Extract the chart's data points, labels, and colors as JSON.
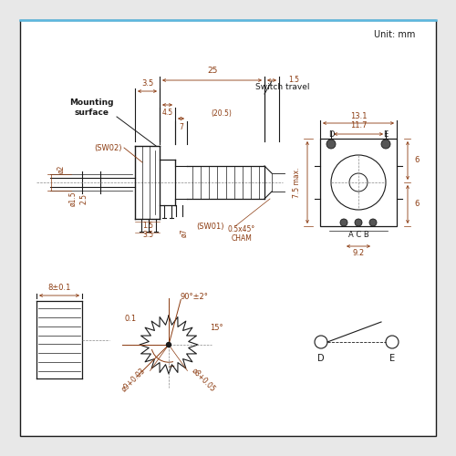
{
  "bg_color": "#e8e8e8",
  "panel_color": "#ffffff",
  "line_color": "#1a1a1a",
  "dim_color": "#8B3A0F",
  "blue_line": "#5bb8e0",
  "unit_text": "Unit: mm",
  "annotations": {
    "mounting_surface": "Mounting\nsurface",
    "sw02": "(SW02)",
    "sw01": "(SW01)",
    "switch_travel": "Switch travel",
    "cham": "0.5x45°\nCHAM",
    "dim_35": "3.5",
    "dim_25": "25",
    "dim_45": "4.5",
    "dim_205": "(20.5)",
    "dim_7": "7",
    "dim_15sw": "1.5",
    "dim_131": "13.1",
    "dim_117": "11.7",
    "dim_75max": "7.5 max.",
    "dim_6": "6",
    "dim_acb": "A C B",
    "dim_92": "9.2",
    "dim_phi2": "ø2",
    "dim_phi15": "ø1.5",
    "dim_25b": "2.5",
    "dim_15a": "1.5",
    "dim_35b": "3.5",
    "dim_phi7": "ø7",
    "dim_8pm01": "8±0.1",
    "dim_90pm2": "90°±2°",
    "dim_15deg": "15°",
    "dim_01": "0.1",
    "dim_phi9003": "ø9+0.03",
    "dim_phi8005": "ø8+0.05",
    "label_d": "D",
    "label_e": "E"
  }
}
